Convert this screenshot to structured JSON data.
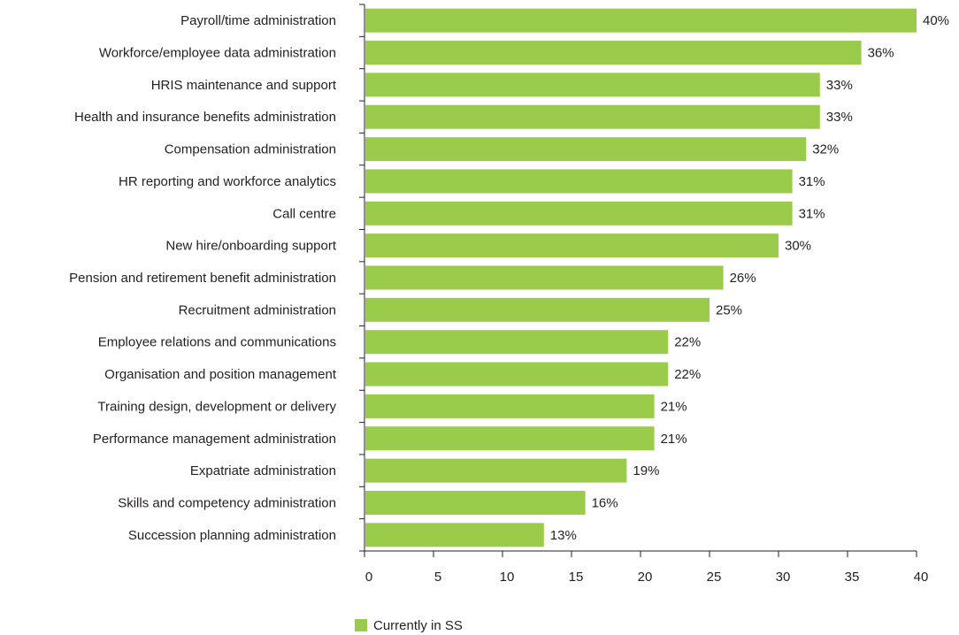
{
  "chart_data": {
    "type": "bar",
    "orientation": "horizontal",
    "categories": [
      "Payroll/time administration",
      "Workforce/employee data administration",
      "HRIS maintenance and support",
      "Health and insurance benefits administration",
      "Compensation administration",
      "HR reporting and workforce analytics",
      "Call centre",
      "New hire/onboarding support",
      "Pension and retirement benefit administration",
      "Recruitment administration",
      "Employee relations and communications",
      "Organisation and position management",
      "Training design, development or delivery",
      "Performance management administration",
      "Expatriate administration",
      "Skills and competency administration",
      "Succession planning administration"
    ],
    "series": [
      {
        "name": "Currently in SS",
        "values": [
          40,
          36,
          33,
          33,
          32,
          31,
          31,
          30,
          26,
          25,
          22,
          22,
          21,
          21,
          19,
          16,
          13
        ],
        "labels": [
          "40%",
          "36%",
          "33%",
          "33%",
          "32%",
          "31%",
          "31%",
          "30%",
          "26%",
          "25%",
          "22%",
          "22%",
          "21%",
          "21%",
          "19%",
          "16%",
          "13%"
        ]
      }
    ],
    "xlim": [
      0,
      40
    ],
    "xticks": [
      "0",
      "5",
      "10",
      "15",
      "20",
      "25",
      "30",
      "35",
      "40"
    ],
    "grid": false,
    "legend_position": "bottom"
  },
  "colors": {
    "bar": "#9acb4b",
    "axis": "#231f20",
    "text": "#231f20"
  }
}
